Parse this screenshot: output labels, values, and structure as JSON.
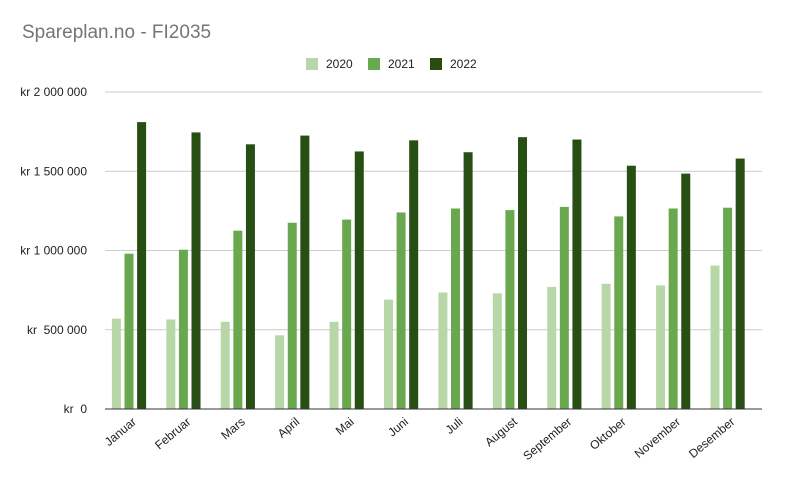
{
  "chart_data": {
    "type": "bar",
    "title": "Spareplan.no - FI2035",
    "categories": [
      "Januar",
      "Februar",
      "Mars",
      "April",
      "Mai",
      "Juni",
      "Juli",
      "August",
      "September",
      "Oktober",
      "November",
      "Desember"
    ],
    "series": [
      {
        "name": "2020",
        "color": "#b7d7a8",
        "values": [
          570000,
          565000,
          550000,
          465000,
          550000,
          690000,
          735000,
          730000,
          770000,
          790000,
          780000,
          905000
        ]
      },
      {
        "name": "2021",
        "color": "#6aa84f",
        "values": [
          980000,
          1005000,
          1125000,
          1175000,
          1195000,
          1240000,
          1265000,
          1255000,
          1275000,
          1215000,
          1265000,
          1270000
        ]
      },
      {
        "name": "2022",
        "color": "#274e13",
        "values": [
          1810000,
          1745000,
          1670000,
          1725000,
          1625000,
          1695000,
          1620000,
          1715000,
          1700000,
          1535000,
          1485000,
          1580000
        ]
      }
    ],
    "ylim": [
      0,
      2000000
    ],
    "yticks": [
      0,
      500000,
      1000000,
      1500000,
      2000000
    ],
    "ytick_labels": [
      "kr  0",
      "kr  500 000",
      "kr 1 000 000",
      "kr 1 500 000",
      "kr 2 000 000"
    ],
    "legend_position": "top-center",
    "grid": true
  }
}
